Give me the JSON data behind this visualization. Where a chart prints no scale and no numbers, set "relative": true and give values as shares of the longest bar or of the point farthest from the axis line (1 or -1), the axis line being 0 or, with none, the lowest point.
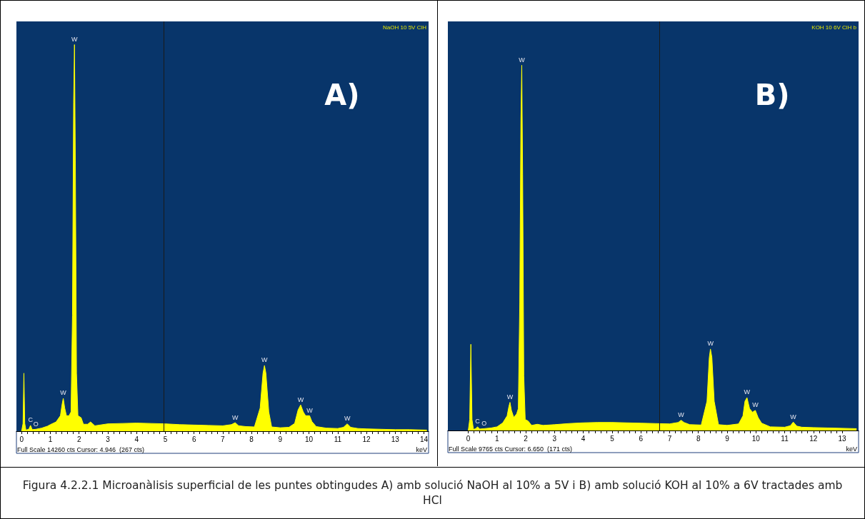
{
  "chart_data": [
    {
      "type": "area",
      "relative": true,
      "xlabel": "keV",
      "xlim": [
        -0.18,
        14.16
      ],
      "xticks": [
        0,
        1,
        2,
        3,
        4,
        5,
        6,
        7,
        8,
        9,
        10,
        11,
        12,
        13,
        14
      ],
      "marker": "none",
      "x": [
        0.0,
        0.05,
        0.08,
        0.11,
        0.15,
        0.25,
        0.31,
        0.37,
        0.5,
        0.7,
        0.9,
        1.0,
        1.2,
        1.35,
        1.41,
        1.45,
        1.5,
        1.56,
        1.65,
        1.72,
        1.77,
        1.81,
        1.84,
        1.87,
        1.91,
        1.96,
        2.07,
        2.15,
        2.3,
        2.4,
        2.55,
        3.0,
        3.5,
        4.0,
        4.5,
        5.0,
        5.5,
        6.0,
        6.5,
        7.0,
        7.3,
        7.43,
        7.55,
        7.8,
        8.1,
        8.3,
        8.4,
        8.45,
        8.5,
        8.6,
        8.7,
        9.0,
        9.3,
        9.5,
        9.62,
        9.71,
        9.8,
        9.88,
        10.02,
        10.1,
        10.25,
        10.6,
        11.0,
        11.2,
        11.33,
        11.45,
        11.7,
        12.0,
        12.5,
        13.0,
        13.5,
        14.1
      ],
      "series": [
        {
          "color": "#ffff00",
          "values": [
            0.0,
            0.02,
            0.15,
            0.02,
            0.003,
            0.005,
            0.015,
            0.004,
            0.005,
            0.008,
            0.013,
            0.017,
            0.024,
            0.04,
            0.07,
            0.085,
            0.06,
            0.04,
            0.04,
            0.05,
            0.3,
            0.85,
            1.0,
            0.7,
            0.15,
            0.04,
            0.035,
            0.018,
            0.018,
            0.024,
            0.014,
            0.019,
            0.02,
            0.021,
            0.02,
            0.019,
            0.017,
            0.016,
            0.015,
            0.014,
            0.017,
            0.022,
            0.014,
            0.012,
            0.011,
            0.06,
            0.15,
            0.17,
            0.15,
            0.05,
            0.011,
            0.009,
            0.01,
            0.02,
            0.055,
            0.068,
            0.05,
            0.04,
            0.04,
            0.025,
            0.012,
            0.008,
            0.007,
            0.01,
            0.019,
            0.01,
            0.007,
            0.006,
            0.005,
            0.004,
            0.004,
            0.003
          ]
        }
      ],
      "ref_lines": [
        {
          "axis": "x",
          "value": 4.946,
          "label": null,
          "color": "#1a1a1a"
        }
      ],
      "annotations": [
        "A)",
        "NaOH 10 5V ClH",
        "Full Scale 14260 cts Cursor: 4.946  (267 cts)",
        "Figura 4.2.2.1 Microanàlisis superficial de les puntes obtingudes A) amb solució NaOH al 10% a 5V i B) amb solució KOH al 10% a 6V tractades amb HCl",
        {
          "text": "C",
          "x": 0.31,
          "y": 0.015
        },
        {
          "text": "O",
          "x": 0.5,
          "y": 0.005
        },
        {
          "text": "W",
          "x": 1.45,
          "y": 0.085
        },
        {
          "text": "W",
          "x": 1.84,
          "y": 1.0
        },
        {
          "text": "W",
          "x": 7.43,
          "y": 0.022
        },
        {
          "text": "W",
          "x": 8.45,
          "y": 0.17
        },
        {
          "text": "W",
          "x": 9.71,
          "y": 0.068
        },
        {
          "text": "W",
          "x": 10.02,
          "y": 0.04
        },
        {
          "text": "W",
          "x": 11.33,
          "y": 0.019
        }
      ]
    },
    {
      "type": "area",
      "relative": true,
      "xlabel": "keV",
      "xlim": [
        -0.71,
        13.57
      ],
      "xticks": [
        0,
        1,
        2,
        3,
        4,
        5,
        6,
        7,
        8,
        9,
        10,
        11,
        12,
        13
      ],
      "marker": "none",
      "x": [
        0.0,
        0.05,
        0.09,
        0.13,
        0.18,
        0.26,
        0.32,
        0.4,
        0.55,
        0.8,
        1.0,
        1.2,
        1.35,
        1.41,
        1.45,
        1.5,
        1.58,
        1.68,
        1.74,
        1.79,
        1.83,
        1.86,
        1.89,
        1.93,
        1.98,
        2.08,
        2.2,
        2.4,
        2.6,
        3.0,
        3.5,
        4.0,
        4.5,
        5.0,
        5.5,
        6.0,
        6.5,
        7.0,
        7.3,
        7.4,
        7.5,
        7.7,
        8.1,
        8.3,
        8.38,
        8.42,
        8.47,
        8.55,
        8.7,
        9.0,
        9.4,
        9.55,
        9.62,
        9.69,
        9.78,
        9.88,
        9.98,
        10.08,
        10.2,
        10.5,
        11.0,
        11.2,
        11.3,
        11.42,
        11.6,
        12.0,
        12.5,
        13.0,
        13.5
      ],
      "series": [
        {
          "color": "#ffff00",
          "values": [
            0.0,
            0.03,
            0.236,
            0.03,
            0.003,
            0.005,
            0.01,
            0.004,
            0.005,
            0.007,
            0.01,
            0.021,
            0.04,
            0.065,
            0.077,
            0.055,
            0.036,
            0.045,
            0.06,
            0.35,
            0.85,
            1.0,
            0.7,
            0.15,
            0.03,
            0.026,
            0.014,
            0.017,
            0.014,
            0.016,
            0.019,
            0.021,
            0.022,
            0.022,
            0.021,
            0.02,
            0.019,
            0.018,
            0.022,
            0.028,
            0.022,
            0.016,
            0.015,
            0.08,
            0.2,
            0.223,
            0.2,
            0.08,
            0.016,
            0.014,
            0.018,
            0.04,
            0.08,
            0.09,
            0.06,
            0.05,
            0.055,
            0.035,
            0.02,
            0.01,
            0.009,
            0.013,
            0.023,
            0.012,
            0.009,
            0.008,
            0.007,
            0.006,
            0.005
          ]
        }
      ],
      "ref_lines": [
        {
          "axis": "x",
          "value": 6.65,
          "label": null,
          "color": "#1a1a1a"
        }
      ],
      "annotations": [
        "B)",
        "KOH 10 6V ClH b",
        "Full Scale 9765 cts Cursor: 6.650  (171 cts)",
        {
          "text": "C",
          "x": 0.32,
          "y": 0.01
        },
        {
          "text": "O",
          "x": 0.55,
          "y": 0.005
        },
        {
          "text": "W",
          "x": 1.45,
          "y": 0.077
        },
        {
          "text": "W",
          "x": 1.86,
          "y": 1.0
        },
        {
          "text": "W",
          "x": 7.4,
          "y": 0.028
        },
        {
          "text": "W",
          "x": 8.42,
          "y": 0.223
        },
        {
          "text": "W",
          "x": 9.69,
          "y": 0.09
        },
        {
          "text": "W",
          "x": 9.98,
          "y": 0.055
        },
        {
          "text": "W",
          "x": 11.3,
          "y": 0.023
        }
      ]
    }
  ]
}
